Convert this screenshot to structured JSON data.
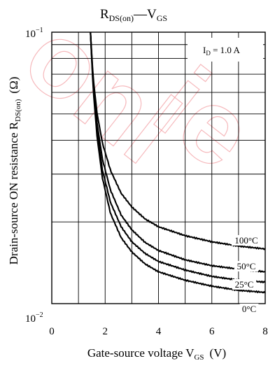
{
  "chart_data": {
    "type": "line",
    "title": "R",
    "title_sub": "DS(on)",
    "title_dash": "—",
    "title_v": "V",
    "title_v_sub": "GS",
    "xlabel": "Gate-source voltage  V",
    "xlabel_sub": "GS",
    "xlabel_unit": "(V)",
    "ylabel": "Drain-source ON resistance  R",
    "ylabel_sub": "DS(on)",
    "ylabel_unit": "(Ω)",
    "x_ticks": [
      "0",
      "2",
      "4",
      "6",
      "8"
    ],
    "y_tick_top": "10",
    "y_tick_top_exp": "−1",
    "y_tick_bottom": "10",
    "y_tick_bottom_exp": "−2",
    "xlim": [
      0,
      8
    ],
    "ylim": [
      0.01,
      0.1
    ],
    "y_scale": "log",
    "grid": true,
    "condition_main": "I",
    "condition_sub": "D",
    "condition_value": " = 1.0 A",
    "series": [
      {
        "name": "100°C",
        "x": [
          1.45,
          1.55,
          1.7,
          1.9,
          2.2,
          2.6,
          3.0,
          3.5,
          4.0,
          5.0,
          6.0,
          7.0,
          8.0
        ],
        "y": [
          0.1,
          0.068,
          0.05,
          0.039,
          0.031,
          0.0255,
          0.0227,
          0.0205,
          0.0192,
          0.0178,
          0.0169,
          0.0163,
          0.0159
        ]
      },
      {
        "name": "50°C",
        "x": [
          1.45,
          1.55,
          1.7,
          1.9,
          2.2,
          2.6,
          3.0,
          3.5,
          4.0,
          5.0,
          6.0,
          7.0,
          8.0
        ],
        "y": [
          0.1,
          0.066,
          0.046,
          0.034,
          0.0262,
          0.0212,
          0.0187,
          0.0168,
          0.0157,
          0.0145,
          0.0138,
          0.0134,
          0.0131
        ]
      },
      {
        "name": "25°C",
        "x": [
          1.45,
          1.55,
          1.7,
          1.9,
          2.2,
          2.6,
          3.0,
          3.5,
          4.0,
          5.0,
          6.0,
          7.0,
          8.0
        ],
        "y": [
          0.1,
          0.064,
          0.043,
          0.031,
          0.0236,
          0.0192,
          0.0169,
          0.0153,
          0.0143,
          0.0133,
          0.0126,
          0.0122,
          0.012
        ]
      },
      {
        "name": "0°C",
        "x": [
          1.45,
          1.55,
          1.7,
          1.9,
          2.2,
          2.6,
          3.0,
          3.5,
          4.0,
          5.0,
          6.0,
          7.0,
          8.0
        ],
        "y": [
          0.1,
          0.062,
          0.041,
          0.029,
          0.0215,
          0.0175,
          0.0155,
          0.014,
          0.0131,
          0.0122,
          0.0116,
          0.0112,
          0.011
        ]
      }
    ],
    "watermark_color": "#e8323c",
    "line_color": "#000000"
  }
}
